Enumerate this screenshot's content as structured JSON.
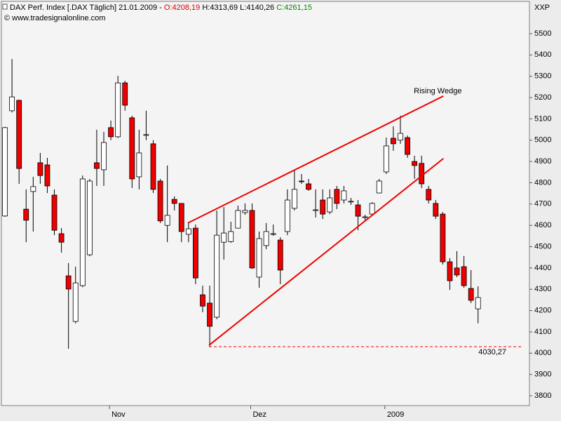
{
  "header": {
    "title": "DAX Perf. Index [.DAX Täglich] 21.01.2009 -",
    "open": "O:4208,19",
    "high_low": "H:4313,69 L:4140,26",
    "close": "C:4261,15",
    "source": "© www.tradesignalonline.com",
    "corner": "XXP"
  },
  "chart_data": {
    "type": "candlestick",
    "categories": [
      null,
      null,
      null,
      null,
      null,
      null,
      null,
      null,
      null,
      null,
      null,
      null,
      null,
      null,
      null,
      "Nov",
      null,
      null,
      null,
      null,
      null,
      null,
      null,
      null,
      null,
      null,
      null,
      null,
      null,
      null,
      null,
      null,
      null,
      null,
      null,
      "Dez",
      null,
      null,
      null,
      null,
      null,
      null,
      null,
      null,
      null,
      null,
      null,
      null,
      null,
      null,
      null,
      null,
      null,
      null,
      "2009",
      null,
      null,
      null,
      null,
      null,
      null,
      null,
      null,
      null,
      null,
      null,
      null,
      null
    ],
    "open": [
      4644,
      5138,
      5187,
      4676,
      4759,
      4894,
      4884,
      4742,
      4561,
      4363,
      4149,
      4317,
      4462,
      4894,
      4861,
      5059,
      5016,
      5269,
      5105,
      4828,
      5023,
      4983,
      4808,
      4600,
      4722,
      4703,
      4558,
      4587,
      4274,
      4235,
      4169,
      4521,
      4524,
      4587,
      4660,
      4670,
      4357,
      4505,
      4558,
      4531,
      4571,
      4680,
      4808,
      4795,
      4670,
      4719,
      4663,
      4769,
      4719,
      4710,
      4696,
      4637,
      4653,
      4752,
      4851,
      5009,
      5000,
      5012,
      4900,
      4891,
      4769,
      4703,
      4653,
      4429,
      4400,
      4406,
      4304,
      4208.19
    ],
    "high": [
      5062,
      5381,
      5190,
      4769,
      4828,
      4940,
      4917,
      4769,
      4587,
      4423,
      4406,
      4834,
      4818,
      5049,
      5039,
      5092,
      5302,
      5279,
      5115,
      5049,
      5138,
      5000,
      4818,
      4881,
      4736,
      4703,
      4611,
      4604,
      4317,
      4317,
      4670,
      4686,
      4617,
      4693,
      4703,
      4703,
      4571,
      4611,
      4604,
      4544,
      4769,
      4858,
      4841,
      4818,
      4769,
      4769,
      4769,
      4785,
      4785,
      4729,
      4719,
      4650,
      4709,
      4818,
      5012,
      5065,
      5115,
      5022,
      4927,
      4927,
      4785,
      4719,
      4663,
      4446,
      4479,
      4456,
      4390,
      4313.69
    ],
    "low": [
      4640,
      5130,
      4795,
      4521,
      4571,
      4795,
      4752,
      4554,
      4472,
      4021,
      4140,
      4310,
      4455,
      4785,
      4785,
      5000,
      5010,
      5138,
      4775,
      4769,
      5000,
      4752,
      4611,
      4521,
      4670,
      4521,
      4521,
      4324,
      4192,
      4030.27,
      4159,
      4439,
      4518,
      4587,
      4650,
      4396,
      4307,
      4488,
      4551,
      4324,
      4554,
      4670,
      4795,
      4762,
      4637,
      4630,
      4653,
      4676,
      4703,
      4696,
      4577,
      4620,
      4643,
      4752,
      4841,
      4950,
      4983,
      4917,
      4818,
      4775,
      4703,
      4630,
      4416,
      4297,
      4357,
      4307,
      4235,
      4140.26
    ],
    "close": [
      5059,
      5203,
      4867,
      4624,
      4782,
      4834,
      4785,
      4577,
      4521,
      4301,
      4330,
      4818,
      4808,
      4867,
      4989,
      5016,
      5269,
      5164,
      4818,
      4940,
      5026,
      4769,
      4621,
      4647,
      4703,
      4571,
      4584,
      4353,
      4221,
      4126,
      4554,
      4564,
      4571,
      4670,
      4670,
      4400,
      4538,
      4571,
      4561,
      4390,
      4719,
      4769,
      4805,
      4769,
      4673,
      4653,
      4729,
      4703,
      4762,
      4713,
      4643,
      4640,
      4703,
      4808,
      4973,
      4983,
      5032,
      4933,
      4881,
      4795,
      4719,
      4643,
      4429,
      4340,
      4367,
      4317,
      4248,
      4261.15
    ],
    "up_color": "#ffffff",
    "down_color": "#ee0000",
    "ylim": [
      3754,
      5658
    ],
    "yticks": [
      3800,
      3900,
      4000,
      4100,
      4200,
      4300,
      4400,
      4500,
      4600,
      4700,
      4800,
      4900,
      5000,
      5100,
      5200,
      5300,
      5400,
      5500
    ],
    "annotations": [
      {
        "type": "trendline",
        "x": [
          25.9,
          62.1
        ],
        "y": [
          4611,
          5207
        ],
        "color": "#ee0000"
      },
      {
        "type": "trendline",
        "x": [
          28.9,
          62.1
        ],
        "y": [
          4037,
          4914
        ],
        "color": "#ee0000"
      },
      {
        "type": "text",
        "text": "Rising Wedge",
        "x": 61.3,
        "y": 5230,
        "color": "#0000cc"
      },
      {
        "type": "hline",
        "x": 28.9,
        "y": 4030.27,
        "label": "4030,27",
        "color": "#ee0000"
      }
    ]
  }
}
